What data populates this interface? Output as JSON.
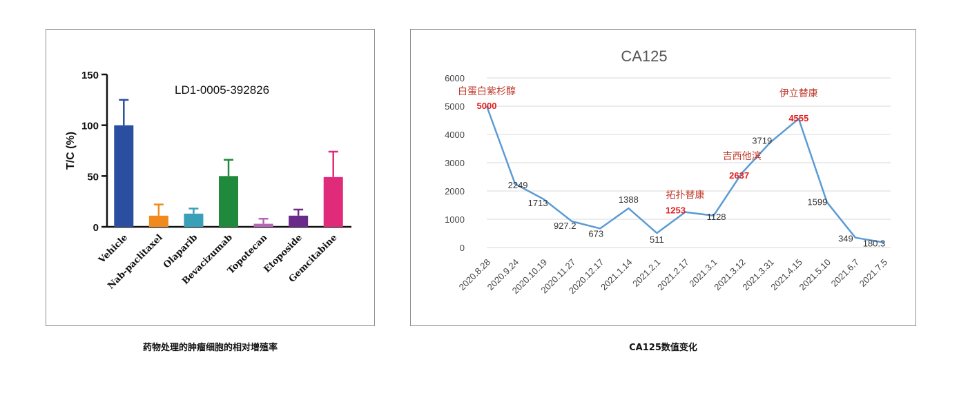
{
  "captions": {
    "left": "药物处理的肿瘤细胞的相对增殖率",
    "right": "CA125数值变化"
  },
  "chart_data": [
    {
      "type": "bar",
      "annotation": "LD1-0005-392826",
      "ylabel": "T/C (%)",
      "ylim": [
        0,
        150
      ],
      "yticks": [
        0,
        50,
        100,
        150
      ],
      "categories": [
        "Vehicle",
        "Nab-paclitaxel",
        "Olaparib",
        "Bevacizumab",
        "Topotecan",
        "Etoposide",
        "Gemcitabine"
      ],
      "values": [
        100,
        11,
        13,
        50,
        3,
        11,
        49
      ],
      "errors": [
        25,
        11,
        5,
        16,
        5,
        6,
        25
      ],
      "colors": [
        "#2a4ea0",
        "#f08a1e",
        "#3aa0b8",
        "#1f8a3b",
        "#b565b5",
        "#6a2a8a",
        "#e02a7a"
      ]
    },
    {
      "type": "line",
      "title": "CA125",
      "ylim": [
        0,
        6000
      ],
      "yticks": [
        0,
        1000,
        2000,
        3000,
        4000,
        5000,
        6000
      ],
      "x": [
        "2020.8.28",
        "2020.9.24",
        "2020.10.19",
        "2020.11.27",
        "2020.12.17",
        "2021.1.14",
        "2021.2.1",
        "2021.2.17",
        "2021.3.1",
        "2021.3.12",
        "2021.3.31",
        "2021.4.15",
        "2021.5.10",
        "2021.6.7",
        "2021.7.5"
      ],
      "values": [
        5000,
        2249,
        1713,
        927.2,
        673,
        1388,
        511,
        1253,
        1128,
        2637,
        3719,
        4555,
        1599,
        349,
        180.3
      ],
      "labels": [
        "5000",
        "2249",
        "1713",
        "927.2",
        "673",
        "1388",
        "511",
        "1253",
        "1128",
        "2637",
        "3719",
        "4555",
        "1599",
        "349",
        "180.3"
      ],
      "highlight_indices": [
        0,
        7,
        9,
        11
      ],
      "annotations": [
        {
          "text": "白蛋白紫杉醇",
          "index": 0
        },
        {
          "text": "拓扑替康",
          "index": 7
        },
        {
          "text": "吉西他滨",
          "index": 9
        },
        {
          "text": "伊立替康",
          "index": 11
        }
      ],
      "line_color": "#5b9bd5",
      "highlight_color": "#e0201e",
      "annotation_color": "#c0392b"
    }
  ]
}
